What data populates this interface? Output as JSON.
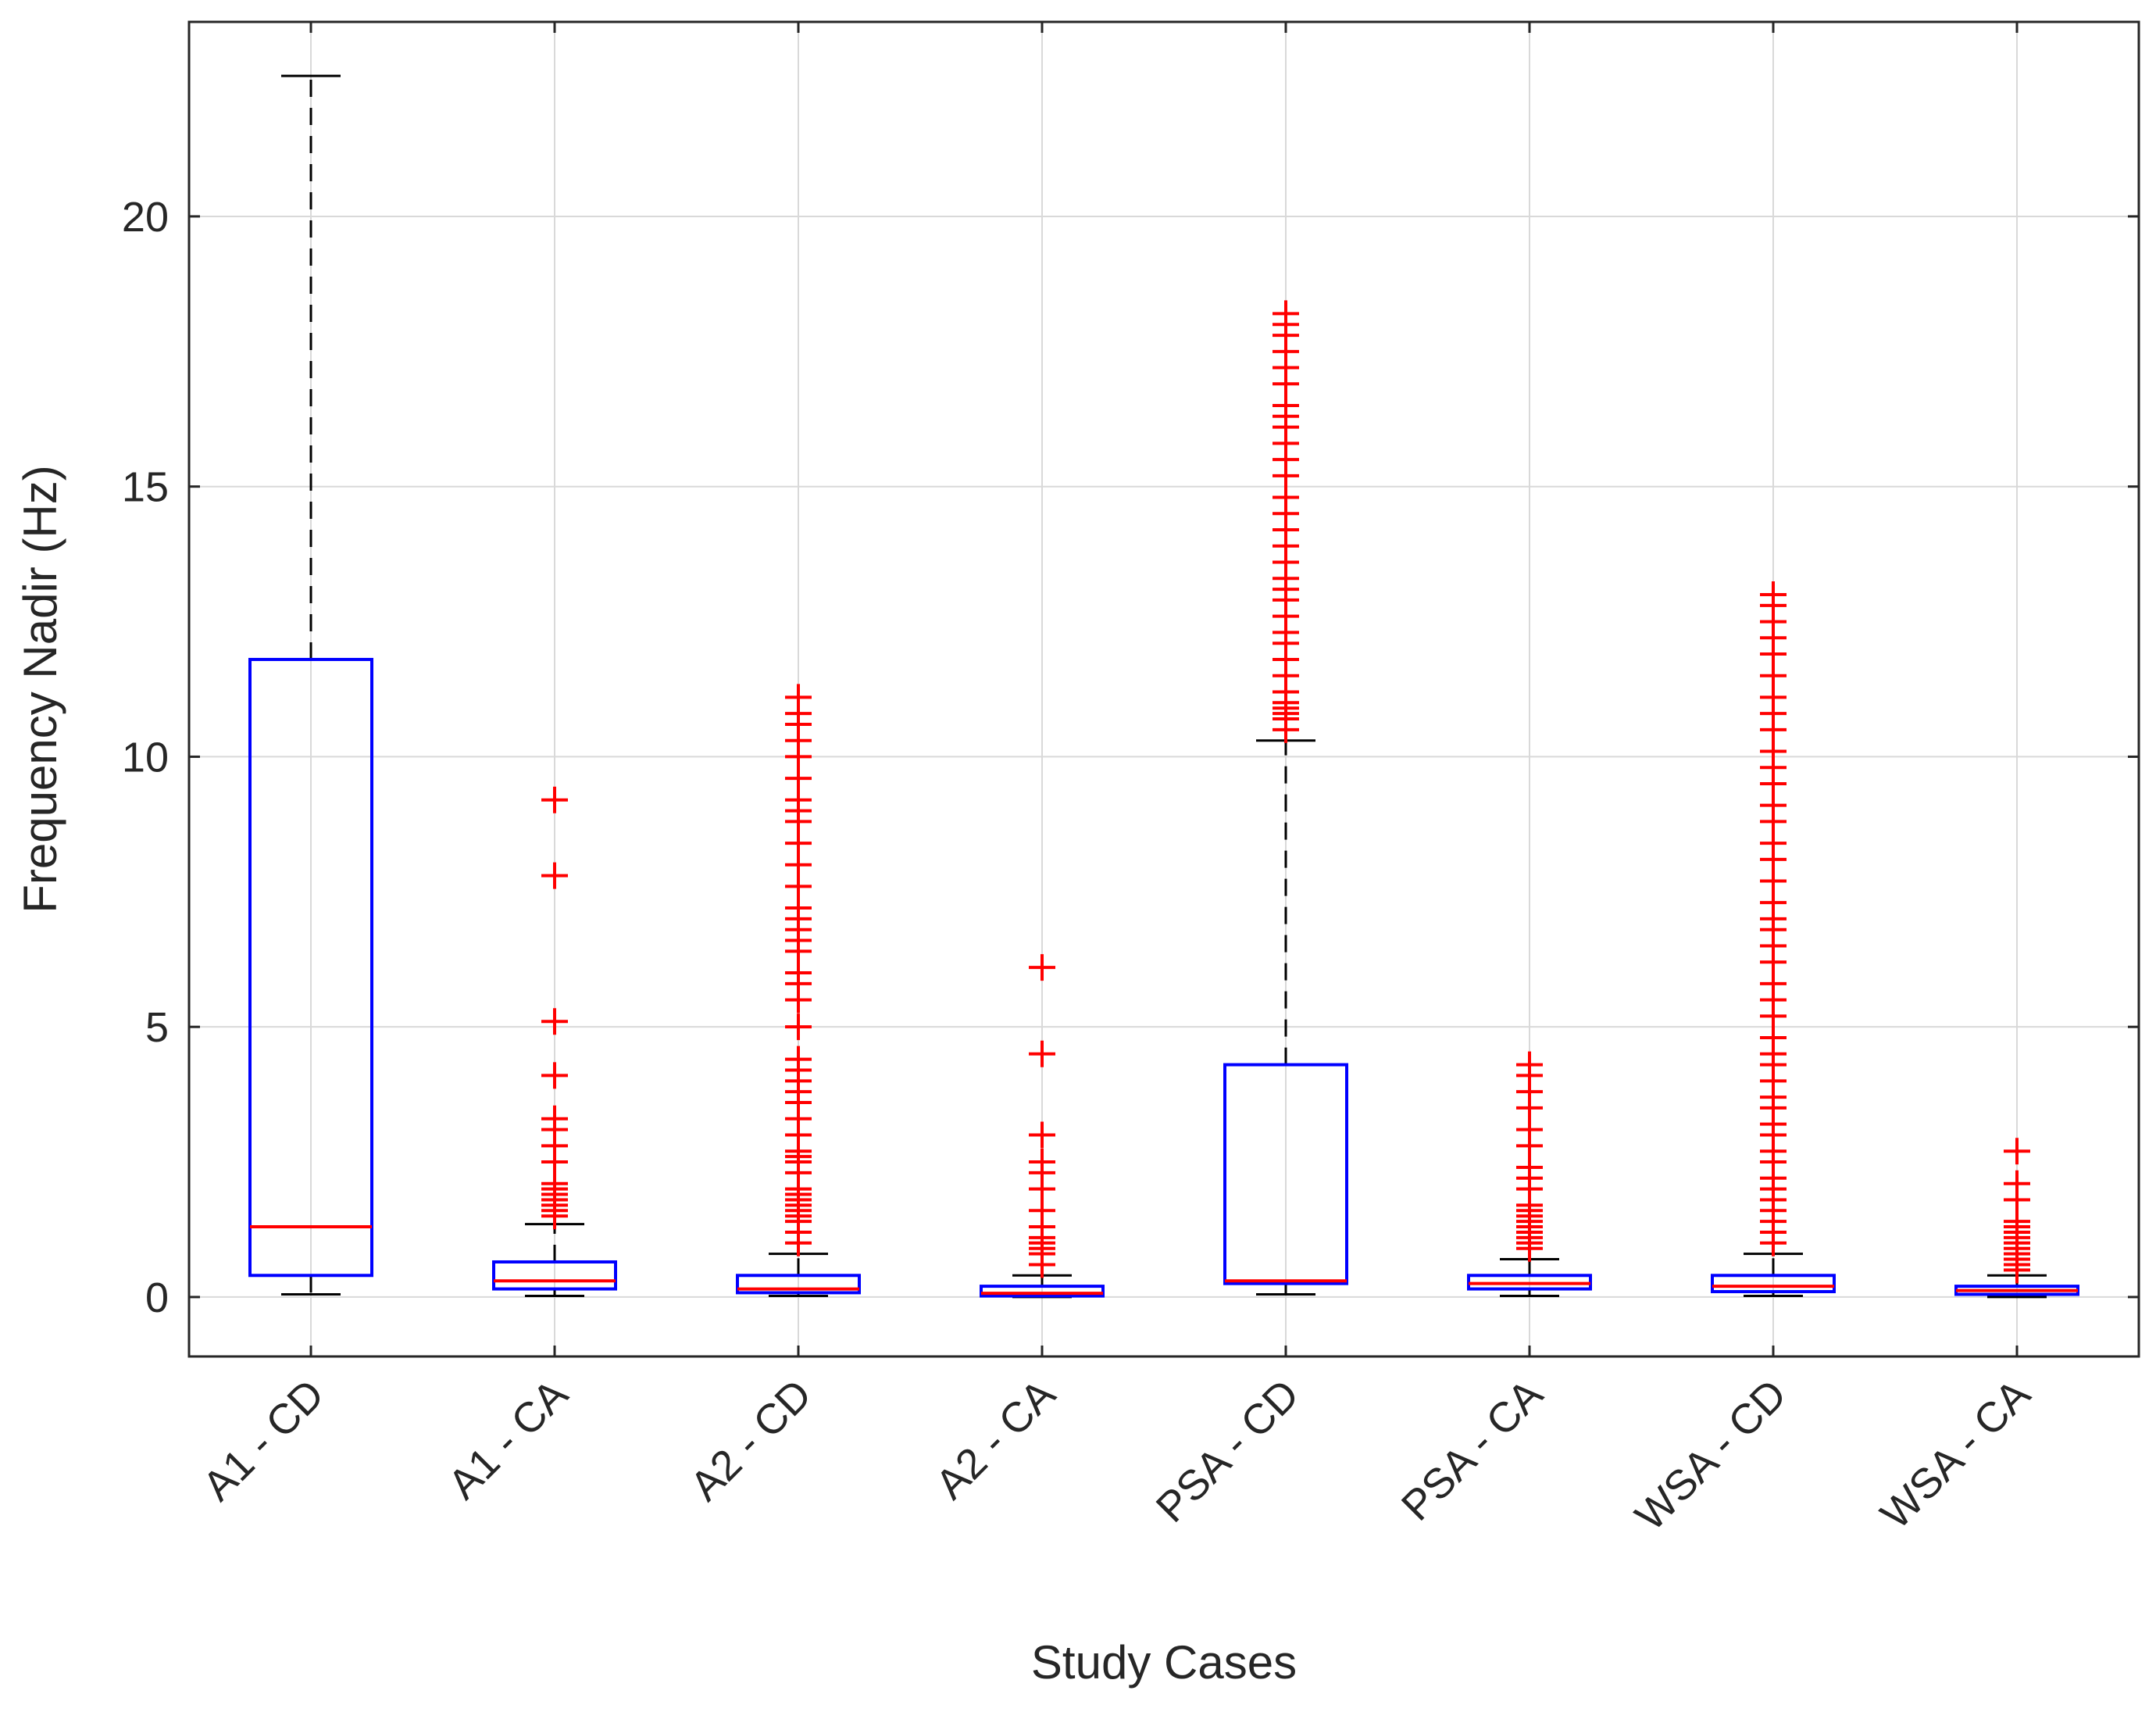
{
  "chart_data": {
    "type": "boxplot",
    "xlabel": "Study Cases",
    "ylabel": "Frequency Nadir (Hz)",
    "ylim": [
      -1.1,
      23.6
    ],
    "yticks": [
      0,
      5,
      10,
      15,
      20
    ],
    "grid": true,
    "colors": {
      "box": "#0000ff",
      "median": "#ff0000",
      "whisker": "#000000",
      "outlier": "#ff0000",
      "grid": "#d9d9d9"
    },
    "categories": [
      "A1 - CD",
      "A1 - CA",
      "A2 - CD",
      "A2 - CA",
      "PSA - CD",
      "PSA - CA",
      "WSA - CD",
      "WSA - CA"
    ],
    "boxes": [
      {
        "label": "A1 - CD",
        "q1": 0.4,
        "median": 1.3,
        "q3": 11.8,
        "whisker_low": 0.05,
        "whisker_high": 22.6,
        "outliers": []
      },
      {
        "label": "A1 - CA",
        "q1": 0.15,
        "median": 0.3,
        "q3": 0.65,
        "whisker_low": 0.02,
        "whisker_high": 1.35,
        "outliers": [
          1.5,
          1.6,
          1.7,
          1.8,
          1.9,
          2.0,
          2.1,
          2.5,
          2.8,
          3.1,
          3.3,
          4.1,
          5.1,
          7.8,
          9.2
        ]
      },
      {
        "label": "A2 - CD",
        "q1": 0.08,
        "median": 0.15,
        "q3": 0.4,
        "whisker_low": 0.02,
        "whisker_high": 0.8,
        "outliers": [
          1.0,
          1.2,
          1.4,
          1.5,
          1.6,
          1.7,
          1.8,
          1.9,
          2.0,
          2.3,
          2.5,
          2.6,
          2.7,
          3.0,
          3.3,
          3.6,
          3.8,
          4.0,
          4.2,
          4.4,
          5.0,
          5.5,
          5.8,
          6.0,
          6.4,
          6.6,
          6.8,
          7.0,
          7.2,
          7.6,
          8.0,
          8.4,
          8.8,
          9.0,
          9.2,
          9.6,
          10.0,
          10.3,
          10.6,
          10.8,
          11.1
        ]
      },
      {
        "label": "A2 - CA",
        "q1": 0.02,
        "median": 0.07,
        "q3": 0.2,
        "whisker_low": 0.0,
        "whisker_high": 0.4,
        "outliers": [
          0.6,
          0.8,
          0.9,
          1.0,
          1.1,
          1.3,
          1.6,
          2.0,
          2.3,
          2.5,
          3.0,
          4.5,
          6.1
        ]
      },
      {
        "label": "PSA - CD",
        "q1": 0.25,
        "median": 0.3,
        "q3": 4.3,
        "whisker_low": 0.05,
        "whisker_high": 10.3,
        "outliers": [
          10.5,
          10.7,
          10.8,
          10.9,
          11.0,
          11.2,
          11.5,
          11.8,
          12.1,
          12.3,
          12.6,
          12.9,
          13.1,
          13.3,
          13.6,
          13.9,
          14.2,
          14.5,
          14.8,
          15.2,
          15.5,
          15.8,
          16.1,
          16.3,
          16.5,
          16.9,
          17.2,
          17.5,
          17.8,
          18.0,
          18.2
        ]
      },
      {
        "label": "PSA - CA",
        "q1": 0.15,
        "median": 0.25,
        "q3": 0.4,
        "whisker_low": 0.02,
        "whisker_high": 0.7,
        "outliers": [
          0.9,
          1.0,
          1.1,
          1.2,
          1.3,
          1.4,
          1.5,
          1.6,
          1.7,
          2.0,
          2.2,
          2.4,
          2.8,
          3.1,
          3.5,
          3.8,
          4.1,
          4.3
        ]
      },
      {
        "label": "WSA - CD",
        "q1": 0.1,
        "median": 0.2,
        "q3": 0.4,
        "whisker_low": 0.02,
        "whisker_high": 0.8,
        "outliers": [
          1.0,
          1.2,
          1.4,
          1.6,
          1.8,
          2.0,
          2.2,
          2.5,
          2.7,
          3.0,
          3.2,
          3.5,
          3.7,
          4.0,
          4.3,
          4.5,
          4.8,
          5.2,
          5.5,
          5.8,
          6.2,
          6.5,
          6.8,
          7.0,
          7.3,
          7.7,
          8.1,
          8.4,
          8.8,
          9.1,
          9.5,
          9.8,
          10.1,
          10.5,
          10.8,
          11.1,
          11.5,
          11.9,
          12.2,
          12.5,
          12.8,
          13.0
        ]
      },
      {
        "label": "WSA - CA",
        "q1": 0.05,
        "median": 0.12,
        "q3": 0.2,
        "whisker_low": 0.0,
        "whisker_high": 0.4,
        "outliers": [
          0.5,
          0.6,
          0.7,
          0.8,
          0.9,
          1.0,
          1.1,
          1.2,
          1.3,
          1.4,
          1.8,
          2.1,
          2.7
        ]
      }
    ]
  }
}
